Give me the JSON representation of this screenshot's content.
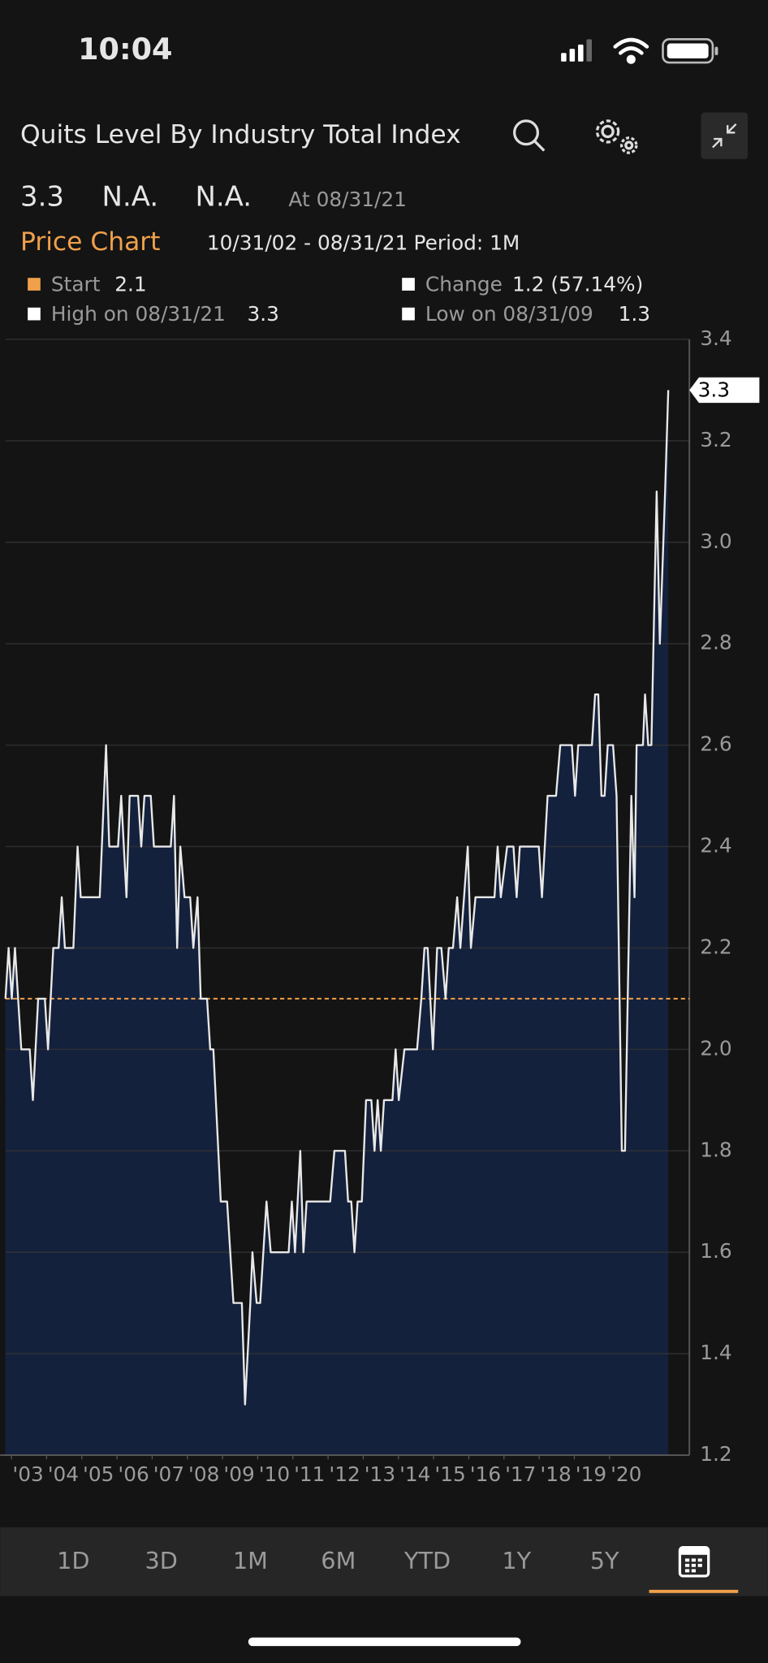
{
  "status_bar": {
    "time": "10:04"
  },
  "header": {
    "title": "Quits Level By Industry Total Index"
  },
  "quote": {
    "last": "3.3",
    "change": "N.A.",
    "percent": "N.A.",
    "as_of": "At 08/31/21"
  },
  "chart_header": {
    "label": "Price Chart",
    "range": "10/31/02 - 08/31/21",
    "period": "Period: 1M"
  },
  "stats": [
    {
      "label": "Start",
      "value": 2.1
    },
    {
      "label": "Change",
      "value": "1.2 (57.14%)"
    },
    {
      "label": "High on 08/31/21",
      "value": 3.3
    },
    {
      "label": "Low on 08/31/09",
      "value": 1.3
    }
  ],
  "chart_data": {
    "type": "area",
    "color": "#e8e8e8",
    "fill": "#14213d",
    "grid": true,
    "x": [
      2002.83,
      2002.92,
      2003.01,
      2003.1,
      2003.28,
      2003.52,
      2003.61,
      2003.76,
      2003.95,
      2004.04,
      2004.19,
      2004.34,
      2004.43,
      2004.52,
      2004.76,
      2004.88,
      2004.97,
      2005.51,
      2005.69,
      2005.78,
      2006.03,
      2006.12,
      2006.27,
      2006.36,
      2006.6,
      2006.69,
      2006.78,
      2006.96,
      2007.05,
      2007.53,
      2007.62,
      2007.71,
      2007.8,
      2007.92,
      2008.08,
      2008.17,
      2008.29,
      2008.38,
      2008.56,
      2008.65,
      2008.74,
      2008.95,
      2009.13,
      2009.31,
      2009.55,
      2009.64,
      2009.79,
      2009.85,
      2009.97,
      2010.07,
      2010.25,
      2010.37,
      2010.88,
      2010.97,
      2011.06,
      2011.21,
      2011.3,
      2011.39,
      2012.06,
      2012.18,
      2012.48,
      2012.57,
      2012.66,
      2012.75,
      2012.84,
      2012.96,
      2013.08,
      2013.23,
      2013.32,
      2013.41,
      2013.5,
      2013.59,
      2013.83,
      2013.92,
      2014.01,
      2014.17,
      2014.53,
      2014.65,
      2014.74,
      2014.83,
      2014.98,
      2015.1,
      2015.22,
      2015.34,
      2015.43,
      2015.55,
      2015.67,
      2015.76,
      2015.97,
      2016.06,
      2016.19,
      2016.73,
      2016.82,
      2016.91,
      2017.09,
      2017.27,
      2017.36,
      2017.45,
      2017.99,
      2018.08,
      2018.24,
      2018.48,
      2018.6,
      2018.93,
      2019.02,
      2019.11,
      2019.5,
      2019.59,
      2019.68,
      2019.77,
      2019.86,
      2019.95,
      2020.1,
      2020.2,
      2020.35,
      2020.44,
      2020.62,
      2020.71,
      2020.77,
      2020.95,
      2021.01,
      2021.1,
      2021.19,
      2021.34,
      2021.43,
      2021.58,
      2021.67
    ],
    "values": [
      2.1,
      2.2,
      2.1,
      2.2,
      2.0,
      2.0,
      1.9,
      2.1,
      2.1,
      2.0,
      2.2,
      2.2,
      2.3,
      2.2,
      2.2,
      2.4,
      2.3,
      2.3,
      2.6,
      2.4,
      2.4,
      2.5,
      2.3,
      2.5,
      2.5,
      2.4,
      2.5,
      2.5,
      2.4,
      2.4,
      2.5,
      2.2,
      2.4,
      2.3,
      2.3,
      2.2,
      2.3,
      2.1,
      2.1,
      2.0,
      2.0,
      1.7,
      1.7,
      1.5,
      1.5,
      1.3,
      1.5,
      1.6,
      1.5,
      1.5,
      1.7,
      1.6,
      1.6,
      1.7,
      1.6,
      1.8,
      1.6,
      1.7,
      1.7,
      1.8,
      1.8,
      1.7,
      1.7,
      1.6,
      1.7,
      1.7,
      1.9,
      1.9,
      1.8,
      1.9,
      1.8,
      1.9,
      1.9,
      2.0,
      1.9,
      2.0,
      2.0,
      2.1,
      2.2,
      2.2,
      2.0,
      2.2,
      2.2,
      2.1,
      2.2,
      2.2,
      2.3,
      2.2,
      2.4,
      2.2,
      2.3,
      2.3,
      2.4,
      2.3,
      2.4,
      2.4,
      2.3,
      2.4,
      2.4,
      2.3,
      2.5,
      2.5,
      2.6,
      2.6,
      2.5,
      2.6,
      2.6,
      2.7,
      2.7,
      2.5,
      2.5,
      2.6,
      2.6,
      2.5,
      1.8,
      1.8,
      2.5,
      2.3,
      2.6,
      2.6,
      2.7,
      2.6,
      2.6,
      3.1,
      2.8,
      3.1,
      3.3
    ],
    "xlim": [
      2002.83,
      2022.27
    ],
    "ylim": [
      1.2,
      3.4
    ],
    "yticks": [
      1.2,
      1.4,
      1.6,
      1.8,
      {
        "value": 2,
        "label": "2.0"
      },
      2.2,
      2.4,
      2.6,
      2.8,
      {
        "value": 3,
        "label": "3.0"
      },
      3.2,
      3.4
    ],
    "xticks": [
      {
        "value": 2003,
        "label": "'03"
      },
      {
        "value": 2004,
        "label": "'04"
      },
      {
        "value": 2005,
        "label": "'05"
      },
      {
        "value": 2006,
        "label": "'06"
      },
      {
        "value": 2007,
        "label": "'07"
      },
      {
        "value": 2008,
        "label": "'08"
      },
      {
        "value": 2009,
        "label": "'09"
      },
      {
        "value": 2010,
        "label": "'10"
      },
      {
        "value": 2011,
        "label": "'11"
      },
      {
        "value": 2012,
        "label": "'12"
      },
      {
        "value": 2013,
        "label": "'13"
      },
      {
        "value": 2014,
        "label": "'14"
      },
      {
        "value": 2015,
        "label": "'15"
      },
      {
        "value": 2016,
        "label": "'16"
      },
      {
        "value": 2017,
        "label": "'17"
      },
      {
        "value": 2018,
        "label": "'18"
      },
      {
        "value": 2019,
        "label": "'19"
      },
      {
        "value": 2020,
        "label": "'20"
      }
    ]
  },
  "tabs": [
    "1D",
    "3D",
    "1M",
    "6M",
    "YTD",
    "1Y",
    "5Y"
  ]
}
